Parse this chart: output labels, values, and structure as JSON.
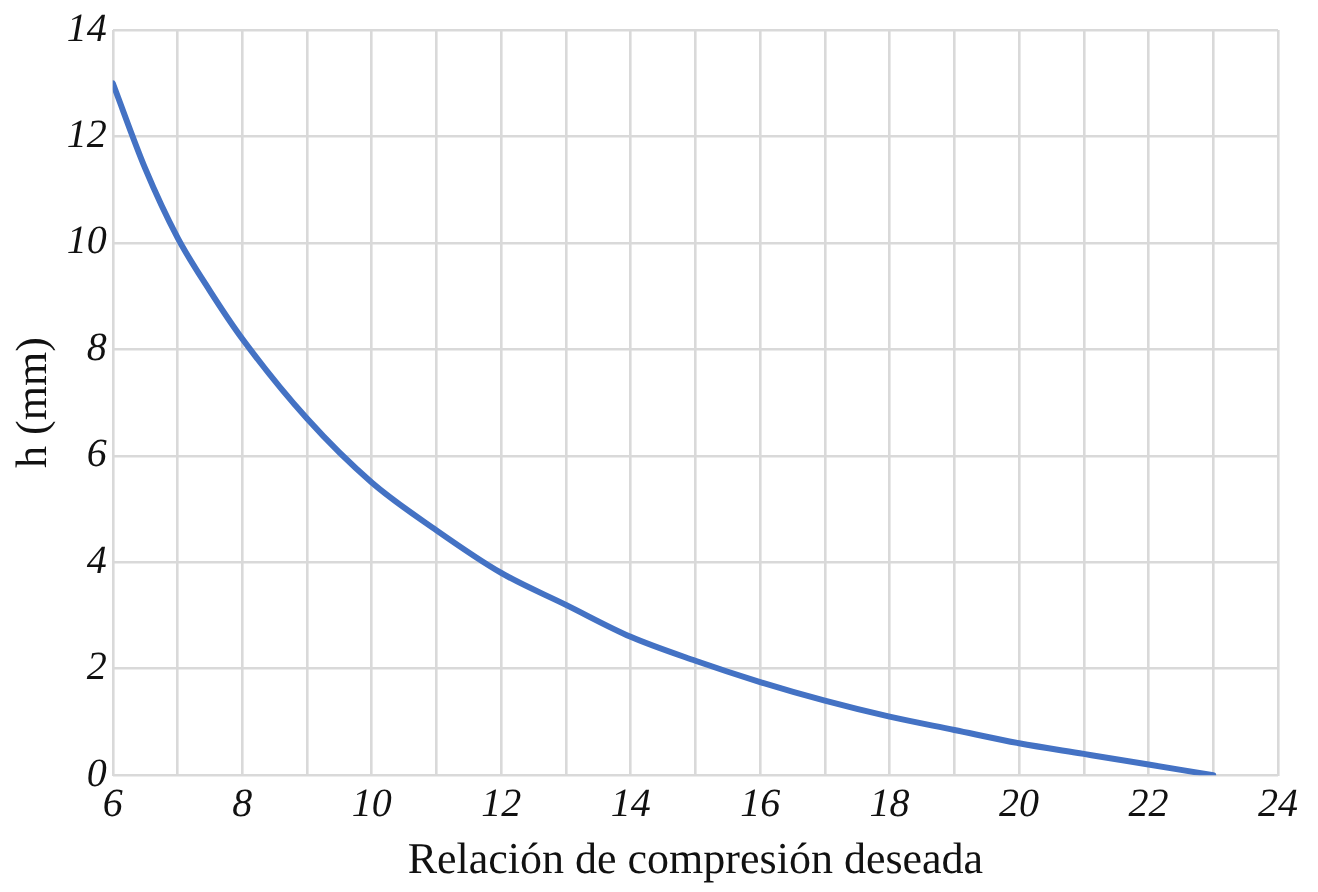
{
  "chart_data": {
    "type": "line",
    "xlabel": "Relación de compresión deseada",
    "ylabel": "h (mm)",
    "x": [
      6,
      6.5,
      7,
      7.5,
      8,
      9,
      10,
      11,
      12,
      13,
      14,
      15,
      16,
      17,
      18,
      19,
      20,
      21,
      22,
      23
    ],
    "series": [
      {
        "color": "#4472c4",
        "values": [
          13,
          11.4,
          10.1,
          9.1,
          8.2,
          6.7,
          5.5,
          4.6,
          3.8,
          3.2,
          2.6,
          2.15,
          1.75,
          1.4,
          1.1,
          0.85,
          0.6,
          0.4,
          0.2,
          0
        ]
      }
    ],
    "xlim": [
      6,
      24
    ],
    "ylim": [
      0,
      14
    ],
    "xticks": [
      6,
      {
        "value": 7,
        "label": null
      },
      8,
      {
        "value": 9,
        "label": null
      },
      10,
      {
        "value": 11,
        "label": null
      },
      12,
      {
        "value": 13,
        "label": null
      },
      14,
      {
        "value": 15,
        "label": null
      },
      16,
      {
        "value": 17,
        "label": null
      },
      18,
      {
        "value": 19,
        "label": null
      },
      20,
      {
        "value": 21,
        "label": null
      },
      22,
      {
        "value": 23,
        "label": null
      },
      24
    ],
    "yticks": [
      0,
      2,
      4,
      6,
      8,
      10,
      12,
      14
    ],
    "grid": true,
    "marker": "none",
    "line_style": "solid"
  }
}
